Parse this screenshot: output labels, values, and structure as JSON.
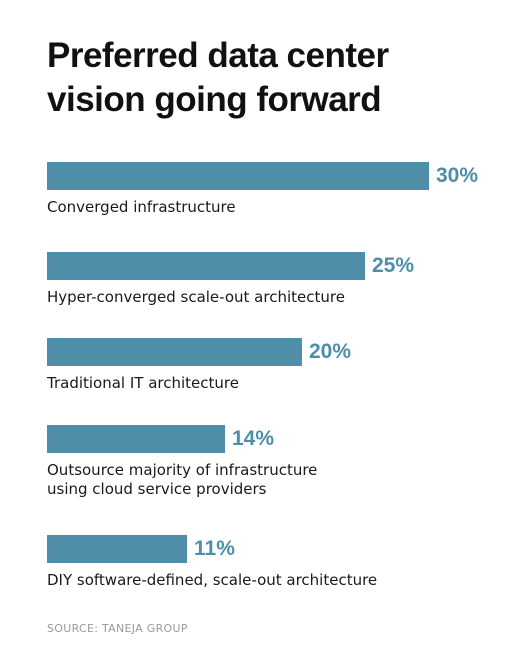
{
  "title_lines": [
    "Preferred data center",
    "vision going forward"
  ],
  "source": "SOURCE: TANEJA GROUP",
  "colors": {
    "bar": "#4f8ea8",
    "value": "#4f8ea8",
    "title": "#111111",
    "source": "#9a9a9a"
  },
  "chart_data": {
    "type": "bar",
    "orientation": "horizontal",
    "title": "Preferred data center vision going forward",
    "unit": "%",
    "xlim": [
      0,
      30
    ],
    "grid": false,
    "legend": "none",
    "categories": [
      [
        "Converged infrastructure"
      ],
      [
        "Hyper-converged scale-out architecture"
      ],
      [
        "Traditional IT architecture"
      ],
      [
        "Outsource majority of infrastructure",
        "using cloud service providers"
      ],
      [
        "DIY software-defined, scale-out architecture"
      ]
    ],
    "values": [
      30,
      25,
      20,
      14,
      11
    ],
    "value_labels": [
      "30%",
      "25%",
      "20%",
      "14%",
      "11%"
    ]
  }
}
